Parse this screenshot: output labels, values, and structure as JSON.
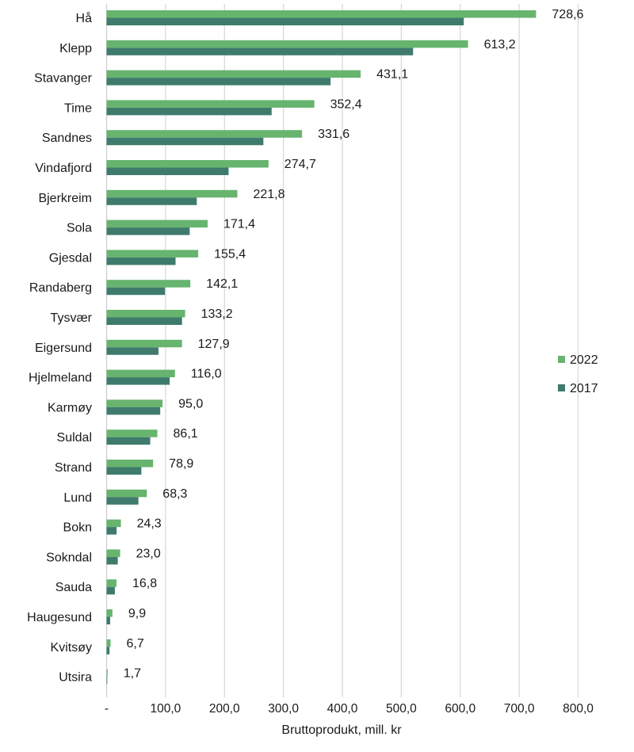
{
  "chart_data": {
    "type": "bar",
    "orientation": "horizontal",
    "title": "",
    "xlabel": "Bruttoprodukt, mill. kr",
    "ylabel": "",
    "xlim": [
      0,
      800
    ],
    "grid": "vertical",
    "legend_position": "right",
    "x_tick_labels": [
      "-",
      "100,0",
      "200,0",
      "300,0",
      "400,0",
      "500,0",
      "600,0",
      "700,0",
      "800,0"
    ],
    "x_ticks": [
      0,
      100,
      200,
      300,
      400,
      500,
      600,
      700,
      800
    ],
    "categories": [
      "Hå",
      "Klepp",
      "Stavanger",
      "Time",
      "Sandnes",
      "Vindafjord",
      "Bjerkreim",
      "Sola",
      "Gjesdal",
      "Randaberg",
      "Tysvær",
      "Eigersund",
      "Hjelmeland",
      "Karmøy",
      "Suldal",
      "Strand",
      "Lund",
      "Bokn",
      "Sokndal",
      "Sauda",
      "Haugesund",
      "Kvitsøy",
      "Utsira"
    ],
    "series": [
      {
        "name": "2022",
        "color": "#66b46e",
        "values": [
          728.6,
          613.2,
          431.1,
          352.4,
          331.6,
          274.7,
          221.8,
          171.4,
          155.4,
          142.1,
          133.2,
          127.9,
          116.0,
          95.0,
          86.1,
          78.9,
          68.3,
          24.3,
          23.0,
          16.8,
          9.9,
          6.7,
          1.7
        ],
        "data_labels": [
          "728,6",
          "613,2",
          "431,1",
          "352,4",
          "331,6",
          "274,7",
          "221,8",
          "171,4",
          "155,4",
          "142,1",
          "133,2",
          "127,9",
          "116,0",
          "95,0",
          "86,1",
          "78,9",
          "68,3",
          "24,3",
          "23,0",
          "16,8",
          "9,9",
          "6,7",
          "1,7"
        ]
      },
      {
        "name": "2017",
        "color": "#3f7b6d",
        "values": [
          606,
          520,
          380,
          280,
          266,
          207,
          153,
          141,
          117,
          99,
          128,
          88,
          107,
          91,
          74,
          59,
          54,
          17,
          19,
          14,
          6,
          5,
          1
        ]
      }
    ]
  }
}
